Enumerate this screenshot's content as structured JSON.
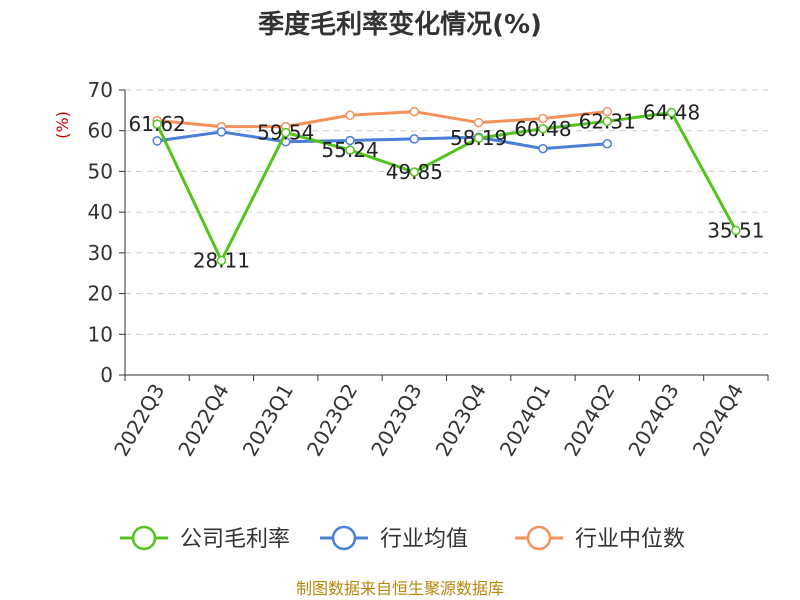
{
  "chart_data": {
    "type": "line",
    "title": "季度毛利率变化情况(%)",
    "ylabel": "(%)",
    "ylim": [
      0,
      70
    ],
    "yticks": [
      0,
      10,
      20,
      30,
      40,
      50,
      60,
      70
    ],
    "grid": true,
    "legend_position": "bottom",
    "categories": [
      "2022Q3",
      "2022Q4",
      "2023Q1",
      "2023Q2",
      "2023Q3",
      "2023Q4",
      "2024Q1",
      "2024Q2",
      "2024Q3",
      "2024Q4"
    ],
    "series": [
      {
        "name": "公司毛利率",
        "color": "#52c41a",
        "values": [
          61.62,
          28.11,
          59.54,
          55.24,
          49.85,
          58.19,
          60.48,
          62.31,
          64.48,
          35.51
        ],
        "labels": [
          "61.62",
          "28.11",
          "59.54",
          "55.24",
          "49.85",
          "58.19",
          "60.48",
          "62.31",
          "64.48",
          "35.51"
        ]
      },
      {
        "name": "行业均值",
        "color": "#4a7fd9",
        "values": [
          57.5,
          59.7,
          57.3,
          57.6,
          58.0,
          58.4,
          55.6,
          56.8,
          null,
          null
        ]
      },
      {
        "name": "行业中位数",
        "color": "#f5915a",
        "values": [
          62.5,
          61.0,
          61.0,
          63.8,
          64.7,
          62.0,
          63.0,
          64.7,
          null,
          null
        ]
      }
    ]
  },
  "footer": "制图数据来自恒生聚源数据库"
}
